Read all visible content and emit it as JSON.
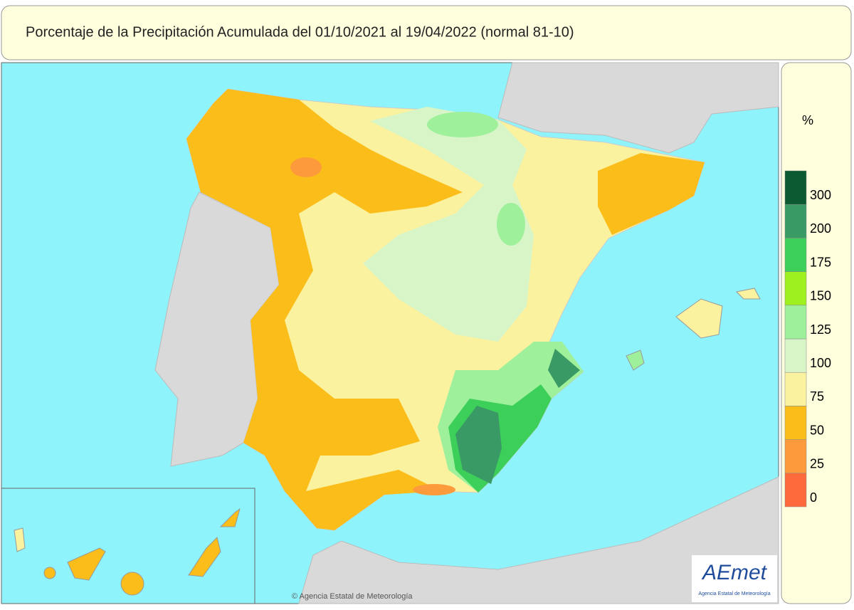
{
  "header": {
    "title": "Porcentaje de la Precipitación Acumulada del 01/10/2021 al 19/04/2022 (normal 81-10)"
  },
  "legend": {
    "unit": "%",
    "items": [
      {
        "label": "0",
        "color": "#ff6a3c"
      },
      {
        "label": "25",
        "color": "#fd9a3c"
      },
      {
        "label": "50",
        "color": "#fbbd1a"
      },
      {
        "label": "75",
        "color": "#fbf2a0"
      },
      {
        "label": "100",
        "color": "#d8f5c8"
      },
      {
        "label": "125",
        "color": "#9ef09a"
      },
      {
        "label": "150",
        "color": "#9ef01e"
      },
      {
        "label": "175",
        "color": "#3ccf5a"
      },
      {
        "label": "200",
        "color": "#3a9a66"
      },
      {
        "label": "300",
        "color": "#0c5a32"
      }
    ]
  },
  "footer": {
    "credit": "© Agencia Estatal de Meteorología"
  },
  "logo": {
    "name": "AEmet",
    "subtitle": "Agencia Estatal de Meteorología"
  }
}
